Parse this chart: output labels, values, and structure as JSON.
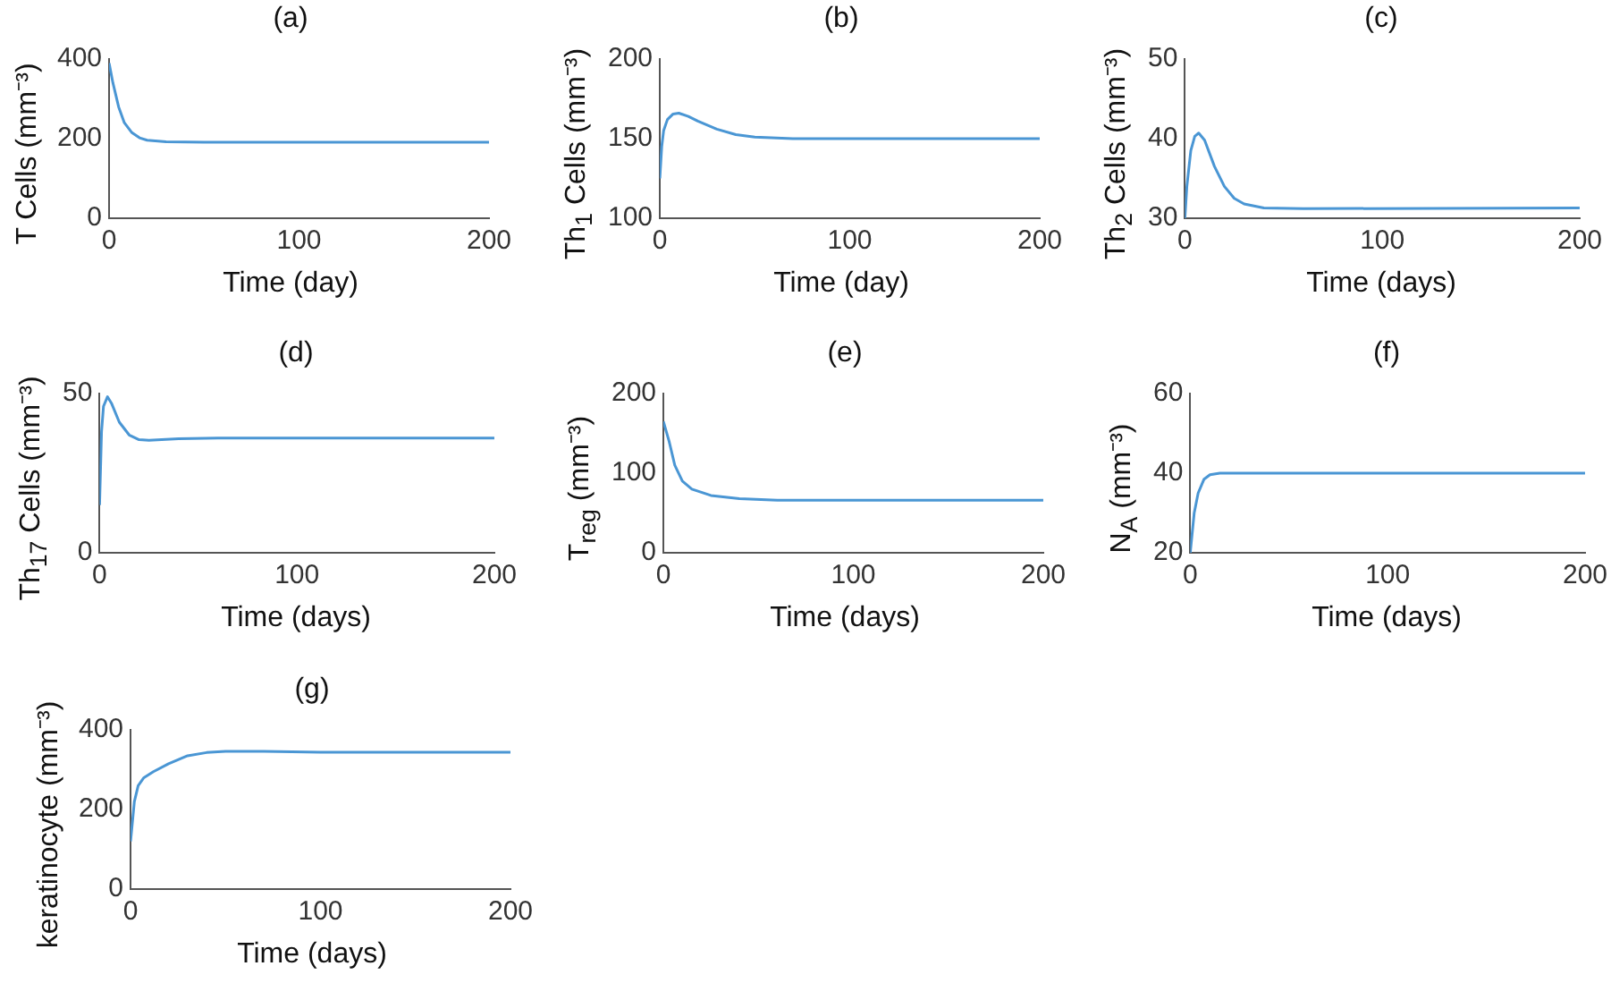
{
  "chart_data": [
    {
      "type": "line",
      "title": "(a)",
      "xlabel": "Time (day)",
      "ylabel": "T Cells (mm⁻³)",
      "color": "#4a96d4",
      "xlim": [
        0,
        200
      ],
      "xticks": [
        0,
        100,
        200
      ],
      "ylim": [
        0,
        400
      ],
      "yticks": [
        0,
        200,
        400
      ],
      "x": [
        0,
        2,
        5,
        8,
        12,
        16,
        20,
        30,
        50,
        100,
        200
      ],
      "values": [
        390,
        340,
        280,
        240,
        215,
        202,
        196,
        192,
        191,
        191,
        191
      ]
    },
    {
      "type": "line",
      "title": "(b)",
      "xlabel": "Time (day)",
      "ylabel": "Th$_{1}$ Cells (mm⁻³)",
      "color": "#4a96d4",
      "xlim": [
        0,
        200
      ],
      "xticks": [
        0,
        100,
        200
      ],
      "ylim": [
        100,
        200
      ],
      "yticks": [
        100,
        150,
        200
      ],
      "x": [
        0,
        1,
        2,
        4,
        7,
        10,
        15,
        20,
        30,
        40,
        50,
        70,
        200
      ],
      "values": [
        125,
        145,
        155,
        162,
        165.5,
        166,
        164,
        161,
        156,
        152.5,
        151,
        150,
        150
      ]
    },
    {
      "type": "line",
      "title": "(c)",
      "xlabel": "Time (days)",
      "ylabel": "Th$_{2}$ Cells (mm⁻³)",
      "color": "#4a96d4",
      "xlim": [
        0,
        200
      ],
      "xticks": [
        0,
        100,
        200
      ],
      "ylim": [
        30,
        50
      ],
      "yticks": [
        30,
        40,
        50
      ],
      "x": [
        0,
        1,
        3,
        5,
        7,
        10,
        15,
        20,
        25,
        30,
        40,
        60,
        200
      ],
      "values": [
        30,
        34,
        38.5,
        40.3,
        40.7,
        39.8,
        36.5,
        34,
        32.5,
        31.8,
        31.3,
        31.2,
        31.3
      ]
    },
    {
      "type": "line",
      "title": "(d)",
      "xlabel": "Time (days)",
      "ylabel": "Th$_{17}$ Cells (mm⁻³)",
      "color": "#4a96d4",
      "xlim": [
        0,
        200
      ],
      "xticks": [
        0,
        100,
        200
      ],
      "ylim": [
        0,
        50
      ],
      "yticks": [
        0,
        50
      ],
      "x": [
        0,
        1,
        2,
        4,
        6,
        10,
        15,
        20,
        25,
        40,
        60,
        200
      ],
      "values": [
        15,
        38,
        46,
        49,
        47,
        41,
        37,
        35.5,
        35.3,
        35.8,
        36,
        36
      ]
    },
    {
      "type": "line",
      "title": "(e)",
      "xlabel": "Time (days)",
      "ylabel": "T$_{reg}$ (mm⁻³)",
      "color": "#4a96d4",
      "xlim": [
        0,
        200
      ],
      "xticks": [
        0,
        100,
        200
      ],
      "ylim": [
        0,
        200
      ],
      "yticks": [
        0,
        100,
        200
      ],
      "x": [
        0,
        3,
        6,
        10,
        15,
        25,
        40,
        60,
        200
      ],
      "values": [
        165,
        140,
        110,
        90,
        80,
        72,
        68,
        66,
        66
      ]
    },
    {
      "type": "line",
      "title": "(f)",
      "xlabel": "Time (days)",
      "ylabel": "N$_{A}$ (mm⁻³)",
      "color": "#4a96d4",
      "xlim": [
        0,
        200
      ],
      "xticks": [
        0,
        100,
        200
      ],
      "ylim": [
        20,
        60
      ],
      "yticks": [
        20,
        40,
        60
      ],
      "x": [
        0,
        2,
        4,
        7,
        10,
        15,
        200
      ],
      "values": [
        20,
        30,
        35,
        38.5,
        39.6,
        40,
        40
      ]
    },
    {
      "type": "line",
      "title": "(g)",
      "xlabel": "Time (days)",
      "ylabel": "keratinocyte (mm⁻³)",
      "color": "#4a96d4",
      "xlim": [
        0,
        200
      ],
      "xticks": [
        0,
        100,
        200
      ],
      "ylim": [
        0,
        400
      ],
      "yticks": [
        0,
        200,
        400
      ],
      "x": [
        0,
        2,
        4,
        7,
        12,
        20,
        30,
        40,
        50,
        70,
        100,
        200
      ],
      "values": [
        120,
        220,
        260,
        280,
        295,
        315,
        335,
        343,
        346,
        346,
        344,
        344
      ]
    }
  ]
}
